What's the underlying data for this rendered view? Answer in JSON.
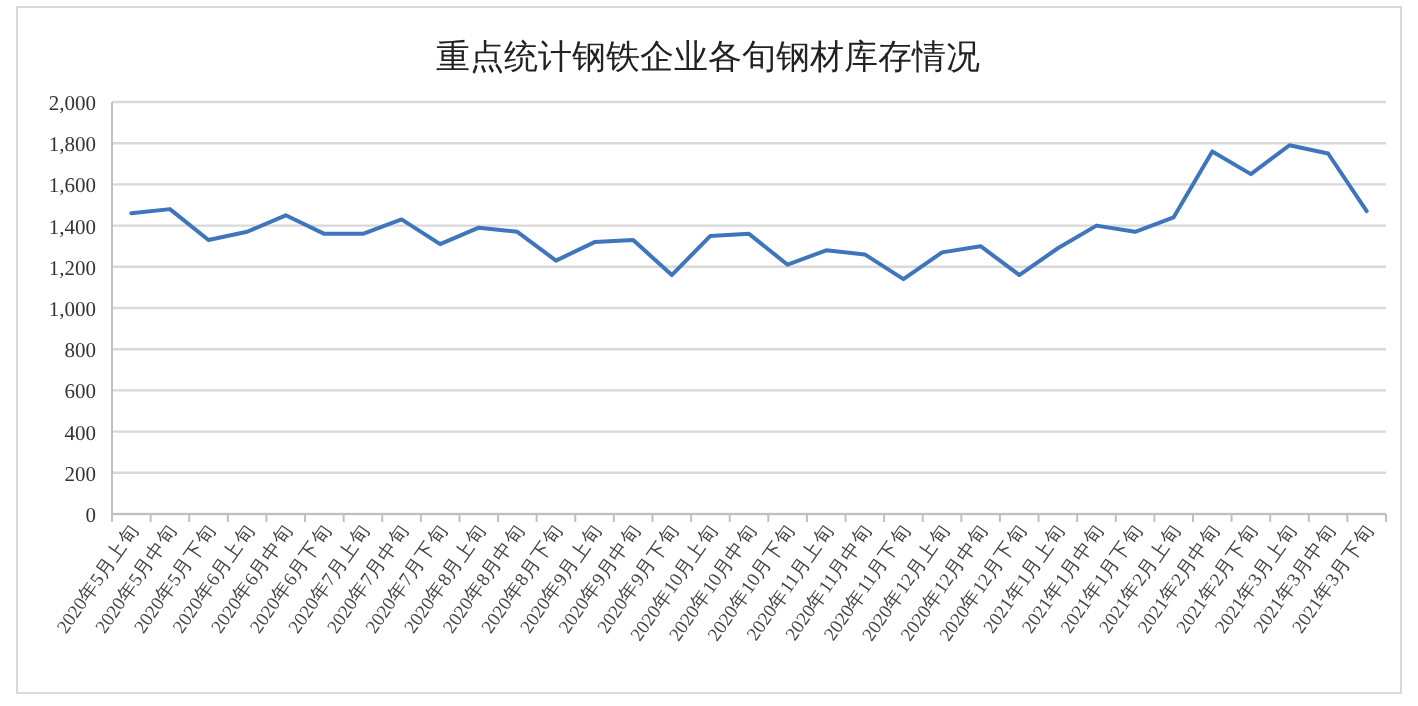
{
  "chart_data": {
    "type": "line",
    "title": "重点统计钢铁企业各旬钢材库存情况",
    "categories": [
      "2020年5月上旬",
      "2020年5月中旬",
      "2020年5月下旬",
      "2020年6月上旬",
      "2020年6月中旬",
      "2020年6月下旬",
      "2020年7月上旬",
      "2020年7月中旬",
      "2020年7月下旬",
      "2020年8月上旬",
      "2020年8月中旬",
      "2020年8月下旬",
      "2020年9月上旬",
      "2020年9月中旬",
      "2020年9月下旬",
      "2020年10月上旬",
      "2020年10月中旬",
      "2020年10月下旬",
      "2020年11月上旬",
      "2020年11月中旬",
      "2020年11月下旬",
      "2020年12月上旬",
      "2020年12月中旬",
      "2020年12月下旬",
      "2021年1月上旬",
      "2021年1月中旬",
      "2021年1月下旬",
      "2021年2月上旬",
      "2021年2月中旬",
      "2021年2月下旬",
      "2021年3月上旬",
      "2021年3月中旬",
      "2021年3月下旬"
    ],
    "series": [
      {
        "color": "#3f75bd",
        "values": [
          1460,
          1480,
          1330,
          1370,
          1450,
          1360,
          1360,
          1430,
          1310,
          1390,
          1370,
          1230,
          1320,
          1330,
          1160,
          1350,
          1360,
          1210,
          1280,
          1260,
          1140,
          1270,
          1300,
          1160,
          1290,
          1400,
          1370,
          1440,
          1760,
          1650,
          1790,
          1750,
          1470
        ]
      }
    ],
    "ylim": [
      0,
      2000
    ],
    "yticks": [
      0,
      200,
      400,
      600,
      800,
      {
        "value": 1000,
        "label": "1,000"
      },
      {
        "value": 1200,
        "label": "1,200"
      },
      {
        "value": 1400,
        "label": "1,400"
      },
      {
        "value": 1600,
        "label": "1,600"
      },
      {
        "value": 1800,
        "label": "1,800"
      },
      {
        "value": 2000,
        "label": "2,000"
      }
    ],
    "grid": "y",
    "marker": "none",
    "line_style": "solid"
  }
}
